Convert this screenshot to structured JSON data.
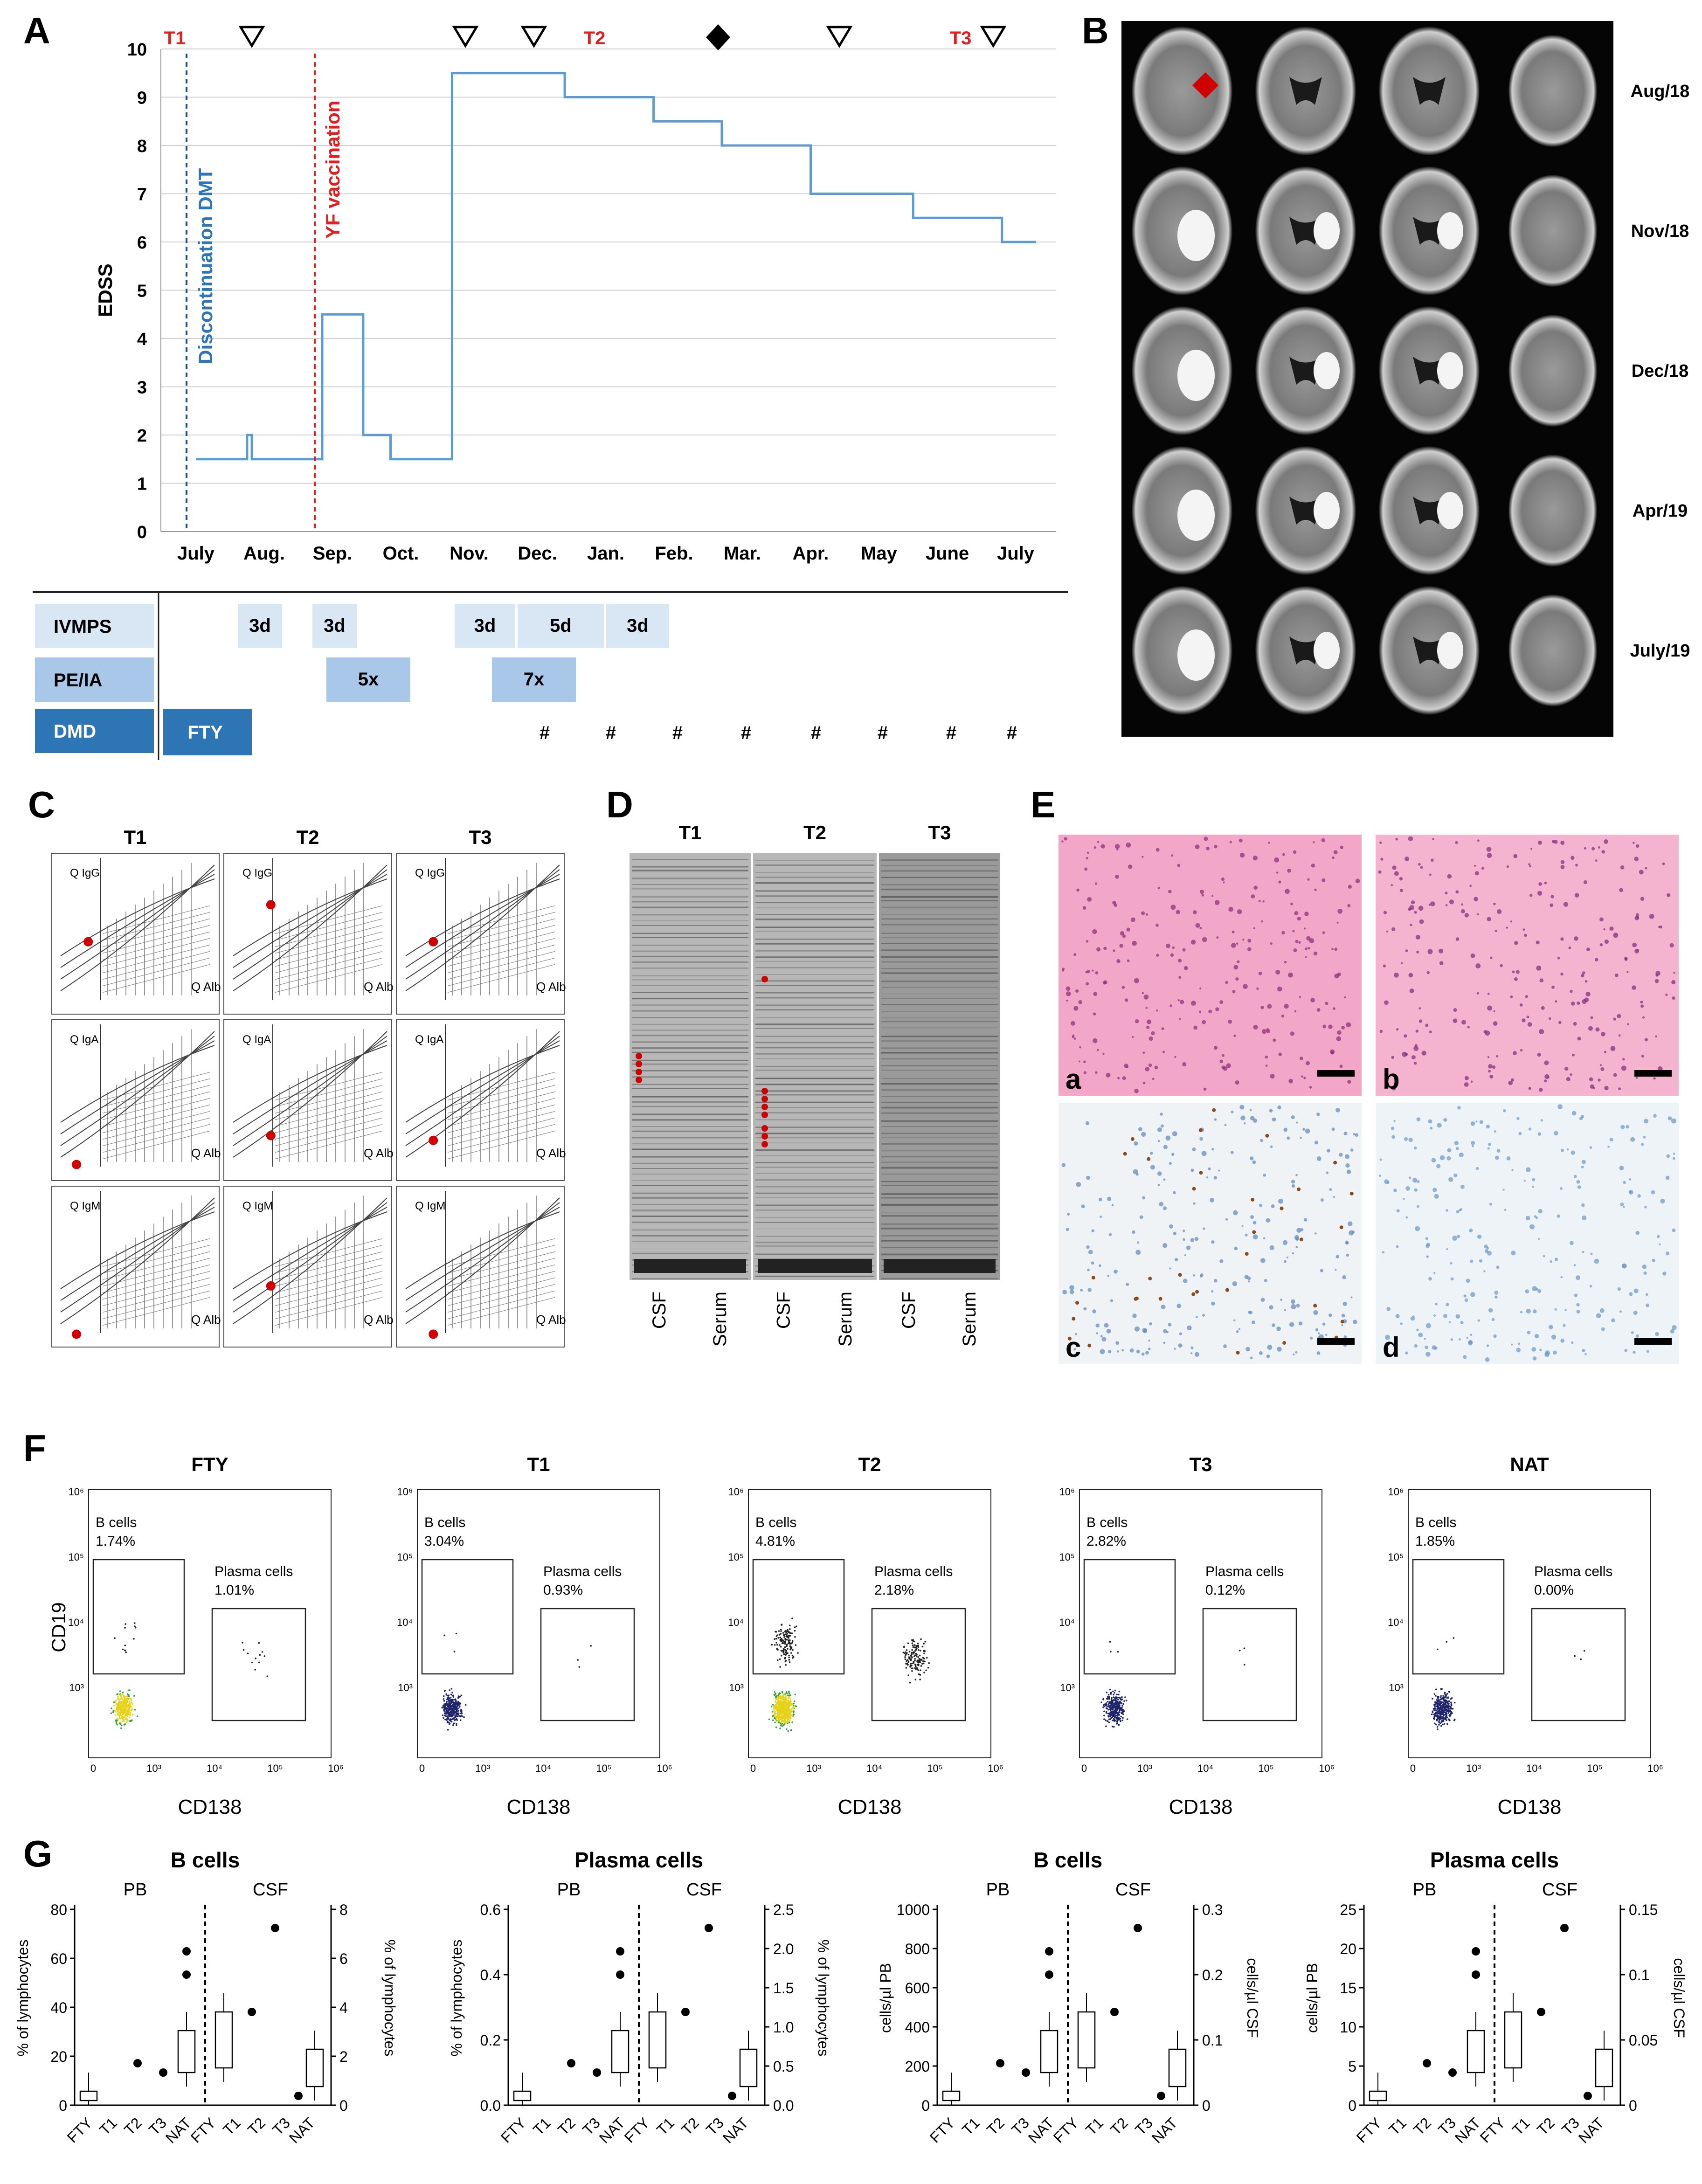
{
  "panels": {
    "A": "A",
    "B": "B",
    "C": "C",
    "D": "D",
    "E": "E",
    "F": "F",
    "G": "G"
  },
  "panelA": {
    "ylabel": "EDSS",
    "yticks": [
      "0",
      "1",
      "2",
      "3",
      "4",
      "5",
      "6",
      "7",
      "8",
      "9",
      "10"
    ],
    "months": [
      "July",
      "Aug.",
      "Sep.",
      "Oct.",
      "Nov.",
      "Dec.",
      "Jan.",
      "Feb.",
      "Mar.",
      "Apr.",
      "May",
      "June",
      "July"
    ],
    "time_markers": [
      "T1",
      "T2",
      "T3"
    ],
    "discontinuation_label": "Discontinuation DMT",
    "vaccination_label": "YF vaccination",
    "colors": {
      "line": "#5b9bd5",
      "discontinuation": "#1f4e79",
      "vaccination": "#e02020",
      "marker_text": "#e02020"
    },
    "therapy_rows": [
      {
        "name": "IVMPS",
        "blocks": [
          "3d",
          "3d",
          "3d",
          "5d",
          "3d"
        ]
      },
      {
        "name": "PE/IA",
        "blocks": [
          "5x",
          "7x"
        ]
      },
      {
        "name": "DMD",
        "blocks": [
          "FTY"
        ],
        "hash": "#"
      }
    ]
  },
  "chart_data": [
    {
      "type": "line",
      "title": "",
      "xlabel": "",
      "ylabel": "EDSS",
      "ylim": [
        0,
        10
      ],
      "x_unit": "month index (0 = July)",
      "x": [
        0,
        0.75,
        0.75,
        0.82,
        0.82,
        1.85,
        1.85,
        2.45,
        2.45,
        2.85,
        2.85,
        3.75,
        3.75,
        5.4,
        5.4,
        6.7,
        6.7,
        7.7,
        7.7,
        9.0,
        9.0,
        10.5,
        10.5,
        11.8,
        11.8,
        12.3
      ],
      "y": [
        1.5,
        1.5,
        2,
        2,
        1.5,
        1.5,
        4.5,
        4.5,
        2,
        2,
        1.5,
        1.5,
        9.5,
        9.5,
        9,
        9,
        8.5,
        8.5,
        8,
        8,
        7,
        7,
        6.5,
        6.5,
        6,
        6
      ]
    },
    {
      "type": "scatter",
      "title": "B cells",
      "groups": [
        "PB",
        "CSF"
      ],
      "categories": [
        "FTY",
        "T1",
        "T2",
        "T3",
        "NAT",
        "FTY",
        "T1",
        "T2",
        "T3",
        "NAT"
      ],
      "ylabel_left": "% of lymphocytes",
      "ylabel_right": "% of lymphocytes",
      "ylim_left": [
        0,
        80
      ],
      "ylim_right": [
        0,
        8
      ],
      "yticks_left": [
        "0",
        "20",
        "40",
        "60",
        "80"
      ],
      "yticks_right": [
        "0",
        "2",
        "4",
        "6",
        "8"
      ]
    },
    {
      "type": "scatter",
      "title": "Plasma cells",
      "groups": [
        "PB",
        "CSF"
      ],
      "categories": [
        "FTY",
        "T1",
        "T2",
        "T3",
        "NAT",
        "FTY",
        "T1",
        "T2",
        "T3",
        "NAT"
      ],
      "ylabel_left": "% of lymphocytes",
      "ylabel_right": "% of lymphocytes",
      "ylim_left": [
        0,
        0.6
      ],
      "ylim_right": [
        0,
        2.5
      ],
      "yticks_left": [
        "0.0",
        "0.2",
        "0.4",
        "0.6"
      ],
      "yticks_right": [
        "0.0",
        "0.5",
        "1.0",
        "1.5",
        "2.0",
        "2.5"
      ]
    },
    {
      "type": "scatter",
      "title": "B cells",
      "groups": [
        "PB",
        "CSF"
      ],
      "categories": [
        "FTY",
        "T1",
        "T2",
        "T3",
        "NAT",
        "FTY",
        "T1",
        "T2",
        "T3",
        "NAT"
      ],
      "ylabel_left": "cells/µl PB",
      "ylabel_right": "cells/µl CSF",
      "ylim_left": [
        0,
        1000
      ],
      "ylim_right": [
        0,
        0.3
      ],
      "yticks_left": [
        "0",
        "200",
        "400",
        "600",
        "800",
        "1000"
      ],
      "yticks_right": [
        "0",
        "0.1",
        "0.2",
        "0.3"
      ]
    },
    {
      "type": "scatter",
      "title": "Plasma cells",
      "groups": [
        "PB",
        "CSF"
      ],
      "categories": [
        "FTY",
        "T1",
        "T2",
        "T3",
        "NAT",
        "FTY",
        "T1",
        "T2",
        "T3",
        "NAT"
      ],
      "ylabel_left": "cells/µl PB",
      "ylabel_right": "cells/µl CSF",
      "ylim_left": [
        0,
        25
      ],
      "ylim_right": [
        0,
        0.15
      ],
      "yticks_left": [
        "0",
        "5",
        "10",
        "15",
        "20",
        "25"
      ],
      "yticks_right": [
        "0",
        "0.05",
        "0.1",
        "0.15"
      ]
    }
  ],
  "panelB": {
    "dates": [
      "Aug/18",
      "Nov/18",
      "Dec/18",
      "Apr/19",
      "July/19"
    ]
  },
  "panelC": {
    "columns": [
      "T1",
      "T2",
      "T3"
    ],
    "row_labels": [
      "Q IgG",
      "Q IgA",
      "Q IgM"
    ],
    "xlabel": "Q Alb"
  },
  "panelD": {
    "columns": [
      "T1",
      "T2",
      "T3"
    ],
    "lane_labels": [
      "CSF",
      "Serum"
    ]
  },
  "panelE": {
    "letters": [
      "a",
      "b",
      "c",
      "d"
    ]
  },
  "panelF": {
    "ylabel": "CD19",
    "xlabel": "CD138",
    "plots": [
      {
        "title": "FTY",
        "bcells": "B cells",
        "bpct": "1.74%",
        "pcells": "Plasma cells",
        "ppct": "1.01%"
      },
      {
        "title": "T1",
        "bcells": "B cells",
        "bpct": "3.04%",
        "pcells": "Plasma cells",
        "ppct": "0.93%"
      },
      {
        "title": "T2",
        "bcells": "B cells",
        "bpct": "4.81%",
        "pcells": "Plasma cells",
        "ppct": "2.18%"
      },
      {
        "title": "T3",
        "bcells": "B cells",
        "bpct": "2.82%",
        "pcells": "Plasma cells",
        "ppct": "0.12%"
      },
      {
        "title": "NAT",
        "bcells": "B cells",
        "bpct": "1.85%",
        "pcells": "Plasma cells",
        "ppct": "0.00%"
      }
    ]
  },
  "panelG": {
    "pb": "PB",
    "csf": "CSF"
  }
}
